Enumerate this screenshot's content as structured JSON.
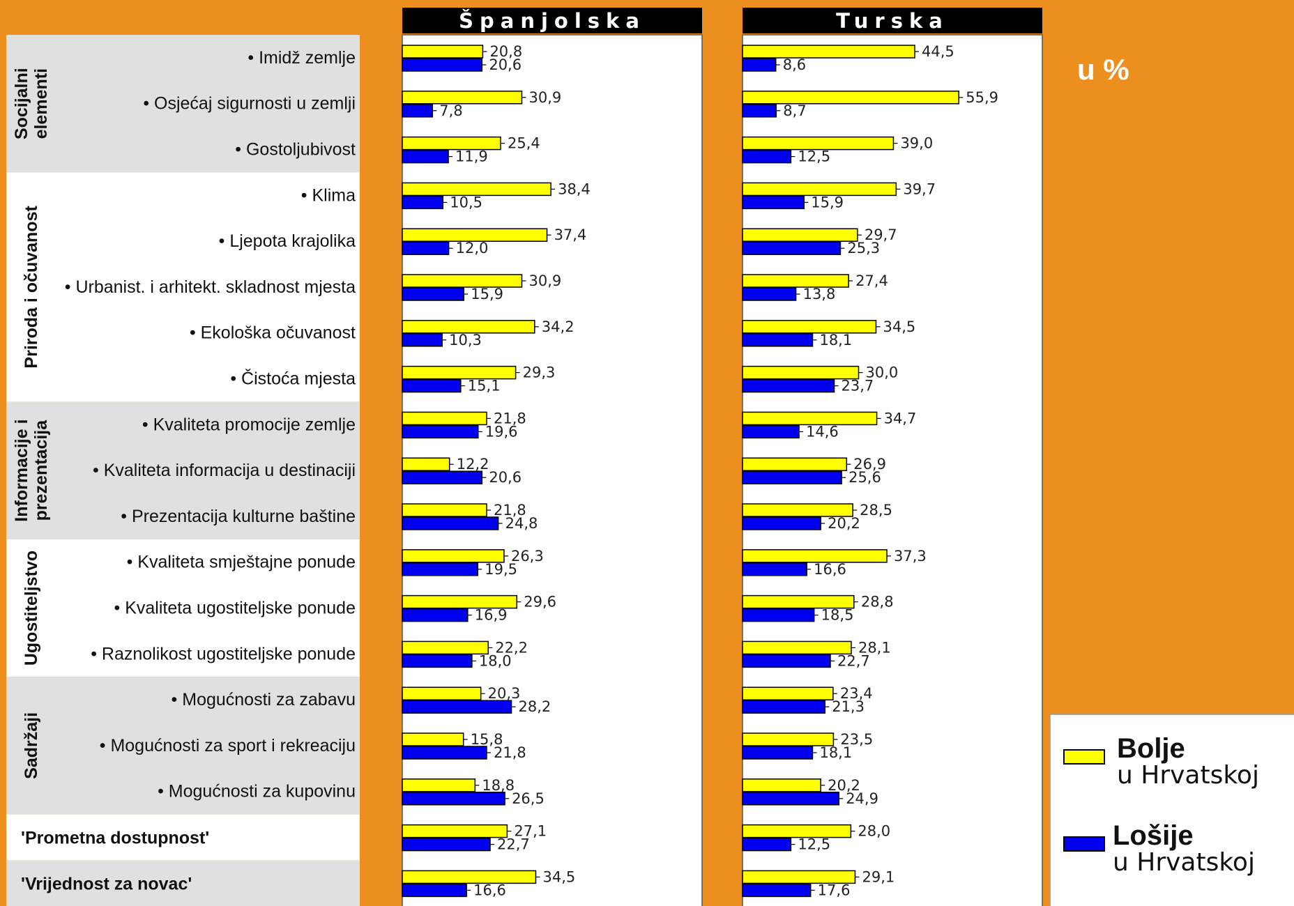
{
  "chart_data": {
    "type": "bar",
    "orientation": "horizontal",
    "unit_label": "u %",
    "panels": [
      "Španjolska",
      "Turska"
    ],
    "groups": [
      {
        "label_lines": [
          "Socijalni",
          "elementi"
        ],
        "count": 3
      },
      {
        "label_lines": [
          "Priroda i očuvanost"
        ],
        "count": 5
      },
      {
        "label_lines": [
          "Informacije i",
          "prezentacija"
        ],
        "count": 3
      },
      {
        "label_lines": [
          "Ugostiteljstvo"
        ],
        "count": 3
      },
      {
        "label_lines": [
          "Sadržaji"
        ],
        "count": 3
      }
    ],
    "standalone_labels": [
      "'Prometna dostupnost'",
      "'Vrijednost za novac'"
    ],
    "categories": [
      "• Imidž zemlje",
      "• Osjećaj sigurnosti u zemlji",
      "• Gostoljubivost",
      "• Klima",
      "• Ljepota krajolika",
      "• Urbanist. i arhitekt. skladnost mjesta",
      "• Ekološka očuvanost",
      "• Čistoća mjesta",
      "• Kvaliteta promocije zemlje",
      "• Kvaliteta informacija u destinaciji",
      "• Prezentacija kulturne baštine",
      "• Kvaliteta smještajne ponude",
      "• Kvaliteta ugostiteljske ponude",
      "• Raznolikost ugostiteljske ponude",
      "• Mogućnosti za zabavu",
      "• Mogućnosti za sport i rekreaciju",
      "• Mogućnosti za kupovinu",
      "",
      ""
    ],
    "series": [
      {
        "name": "Bolje u Hrvatskoj",
        "color": "#ffff00"
      },
      {
        "name": "Lošije u Hrvatskoj",
        "color": "#0000ee"
      }
    ],
    "legend": [
      {
        "strong": "Bolje",
        "rest": "u Hrvatskoj",
        "color": "#ffff00"
      },
      {
        "strong": "Lošije",
        "rest": "u Hrvatskoj",
        "color": "#0000ee"
      }
    ],
    "values": {
      "Španjolska": {
        "bolje": [
          "20,8",
          "30,9",
          "25,4",
          "38,4",
          "37,4",
          "30,9",
          "34,2",
          "29,3",
          "21,8",
          "12,2",
          "21,8",
          "26,3",
          "29,6",
          "22,2",
          "20,3",
          "15,8",
          "18,8",
          "27,1",
          "34,5"
        ],
        "losije": [
          "20,6",
          "7,8",
          "11,9",
          "10,5",
          "12,0",
          "15,9",
          "10,3",
          "15,1",
          "19,6",
          "20,6",
          "24,8",
          "19,5",
          "16,9",
          "18,0",
          "28,2",
          "21,8",
          "26,5",
          "22,7",
          "16,6"
        ]
      },
      "Turska": {
        "bolje": [
          "44,5",
          "55,9",
          "39,0",
          "39,7",
          "29,7",
          "27,4",
          "34,5",
          "30,0",
          "34,7",
          "26,9",
          "28,5",
          "37,3",
          "28,8",
          "28,1",
          "23,4",
          "23,5",
          "20,2",
          "28,0",
          "29,1"
        ],
        "losije": [
          "8,6",
          "8,7",
          "12,5",
          "15,9",
          "25,3",
          "13,8",
          "18,1",
          "23,7",
          "14,6",
          "25,6",
          "20,2",
          "16,6",
          "18,5",
          "22,7",
          "21,3",
          "18,1",
          "24,9",
          "12,5",
          "17,6"
        ]
      }
    },
    "xlim": [
      0,
      60
    ],
    "grid": false,
    "legend_position": "bottom-right"
  }
}
